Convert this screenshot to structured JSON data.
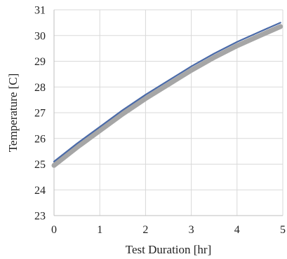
{
  "chart_data": {
    "type": "line",
    "title": "",
    "xlabel": "Test Duration [hr]",
    "ylabel": "Temperature [C]",
    "xlim": [
      0,
      5
    ],
    "ylim": [
      23,
      31
    ],
    "xticks": [
      "0",
      "1",
      "2",
      "3",
      "4",
      "5"
    ],
    "yticks": [
      "23",
      "24",
      "25",
      "26",
      "27",
      "28",
      "29",
      "30",
      "31"
    ],
    "grid": true,
    "legend": "none",
    "series": [
      {
        "color": "#a6a6a6",
        "style": "thick",
        "x": [
          0,
          0.5,
          1,
          1.5,
          2,
          2.5,
          3,
          3.5,
          4,
          4.5,
          4.95
        ],
        "y": [
          24.95,
          25.65,
          26.3,
          26.95,
          27.55,
          28.1,
          28.65,
          29.15,
          29.6,
          30.0,
          30.35
        ]
      },
      {
        "color": "#4a6aa8",
        "style": "thin",
        "x": [
          0,
          0.5,
          1,
          1.5,
          2,
          2.5,
          3,
          3.5,
          4,
          4.5,
          4.95
        ],
        "y": [
          25.1,
          25.8,
          26.45,
          27.1,
          27.7,
          28.25,
          28.8,
          29.3,
          29.75,
          30.15,
          30.5
        ]
      }
    ]
  }
}
